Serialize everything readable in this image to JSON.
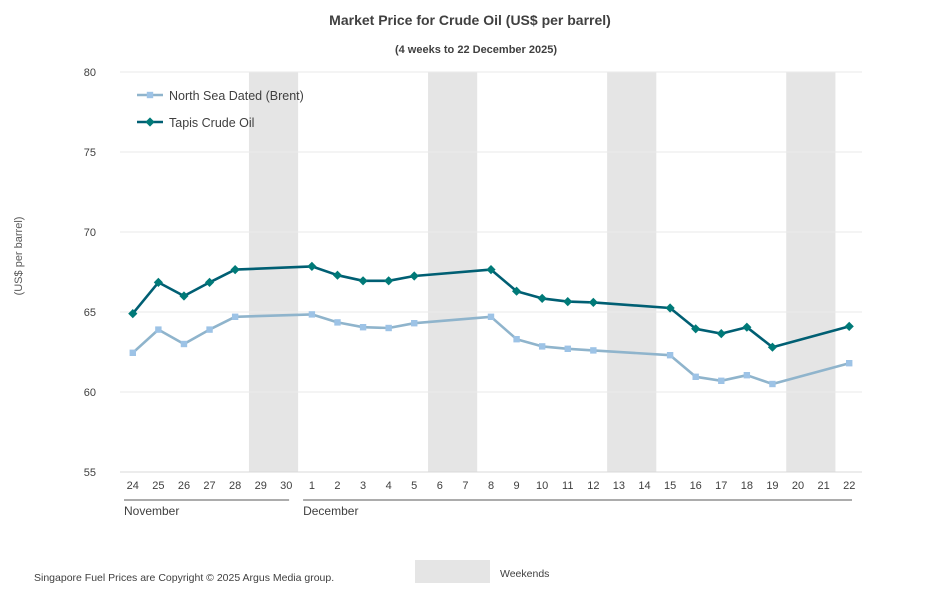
{
  "chart_data": {
    "type": "line",
    "title": "Market Price for Crude Oil (US$ per barrel)",
    "subtitle": "(4 weeks to 22 December 2025)",
    "ylabel": "(US$ per barrel)",
    "ylim": [
      55,
      80
    ],
    "yticks": [
      55,
      60,
      65,
      70,
      75,
      80
    ],
    "categories": [
      "24",
      "25",
      "26",
      "27",
      "28",
      "29",
      "30",
      "1",
      "2",
      "3",
      "4",
      "5",
      "6",
      "7",
      "8",
      "9",
      "10",
      "11",
      "12",
      "13",
      "14",
      "15",
      "16",
      "17",
      "18",
      "19",
      "20",
      "21",
      "22"
    ],
    "months": [
      {
        "name": "November",
        "start": 0,
        "end": 6
      },
      {
        "name": "December",
        "start": 7,
        "end": 28
      }
    ],
    "weekend_pairs": [
      [
        5,
        6
      ],
      [
        12,
        13
      ],
      [
        19,
        20
      ],
      [
        26,
        27
      ]
    ],
    "series": [
      {
        "name": "North Sea Dated (Brent)",
        "color": "#8fb4cc",
        "marker_color": "#9dc3e6",
        "marker": "square",
        "values": [
          62.45,
          63.9,
          63.0,
          63.9,
          64.7,
          null,
          null,
          64.85,
          64.35,
          64.05,
          64.0,
          64.3,
          null,
          null,
          64.7,
          63.3,
          62.85,
          62.7,
          62.6,
          null,
          null,
          62.3,
          60.95,
          60.7,
          61.05,
          60.5,
          null,
          null,
          61.8
        ]
      },
      {
        "name": "Tapis Crude Oil",
        "color": "#005f73",
        "marker_color": "#007a78",
        "marker": "diamond",
        "values": [
          64.9,
          66.85,
          66.0,
          66.85,
          67.65,
          null,
          null,
          67.85,
          67.3,
          66.95,
          66.95,
          67.25,
          null,
          null,
          67.65,
          66.3,
          65.85,
          65.65,
          65.6,
          null,
          null,
          65.25,
          63.95,
          63.65,
          64.05,
          62.8,
          null,
          null,
          64.1
        ]
      }
    ],
    "weekend_legend": "Weekends",
    "weekend_color": "#e5e5e5"
  },
  "footer": {
    "copyright": "Singapore Fuel Prices are Copyright © 2025 Argus Media group."
  }
}
